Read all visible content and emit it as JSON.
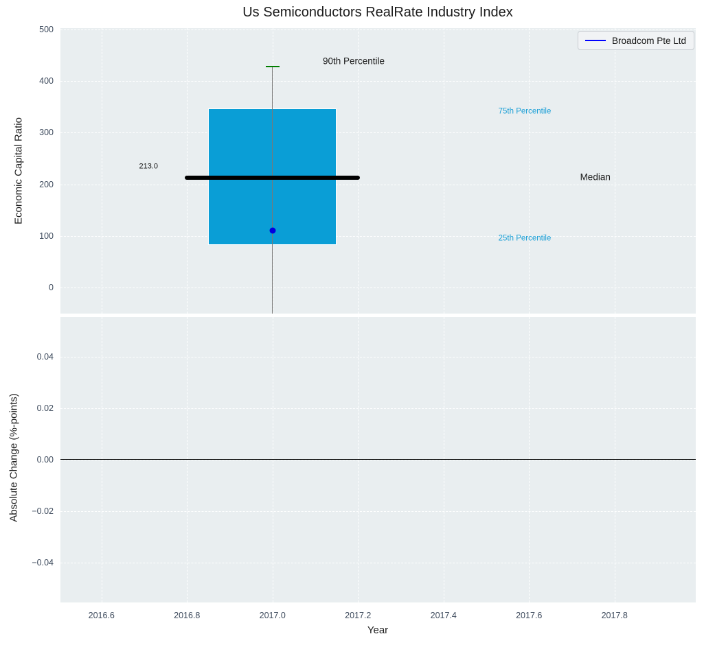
{
  "title": "Us Semiconductors RealRate Industry Index",
  "legend": {
    "label": "Broadcom Pte Ltd",
    "line_color": "#0000ff"
  },
  "colors": {
    "plot_bg": "#e9eef0",
    "grid": "rgba(255,255,255,0.95)",
    "box_fill": "#0a9ed6",
    "box_edge": "#ffffff",
    "median_line": "#000000",
    "whisker": "#787878",
    "p90_cap": "#007d00",
    "company_dot": "#0000e0",
    "tick_text": "#3d4a5c",
    "percentile_label_blue": "#1b9fd6",
    "annotation_black": "#1a1a1a"
  },
  "chart_data": [
    {
      "type": "box",
      "title": "Us Semiconductors RealRate Industry Index",
      "xlabel": "Year",
      "ylabel": "Economic Capital Ratio",
      "xlim": [
        2016.504,
        2017.99
      ],
      "ylim": [
        -50,
        502.4
      ],
      "grid": true,
      "legend_position": "upper right",
      "xticks": {
        "values": [
          2016.6,
          2016.8,
          2017.0,
          2017.2,
          2017.4,
          2017.6,
          2017.8
        ],
        "labels": [
          "2016.6",
          "2016.8",
          "2017.0",
          "2017.2",
          "2017.4",
          "2017.6",
          "2017.8"
        ],
        "show_labels": false
      },
      "yticks": {
        "values": [
          0,
          100,
          200,
          300,
          400,
          500
        ],
        "labels": [
          "0",
          "100",
          "200",
          "300",
          "400",
          "500"
        ]
      },
      "box": {
        "x": 2017.0,
        "p90": 428,
        "p75": 347,
        "median": 213.0,
        "median_label": "213.0",
        "p25": 83,
        "whisker_low_clipped": -50,
        "company_name": "Broadcom Pte Ltd",
        "company_value": 111,
        "box_halfwidth": 0.15,
        "median_halfwidth": 0.205,
        "cap_halfwidth": 0.016
      },
      "annotations": [
        {
          "text": "90th Percentile",
          "x": 2017.19,
          "y": 439,
          "color": "#1a1a1a",
          "size": 13.5
        },
        {
          "text": "75th Percentile",
          "x": 2017.59,
          "y": 340,
          "color": "#1b9fd6",
          "size": 11.5
        },
        {
          "text": "Median",
          "x": 2017.755,
          "y": 214,
          "color": "#1a1a1a",
          "size": 13.5
        },
        {
          "text": "25th Percentile",
          "x": 2017.59,
          "y": 95,
          "color": "#1b9fd6",
          "size": 11.5
        },
        {
          "text": "213.0",
          "x": 2016.71,
          "y": 234,
          "color": "#1a1a1a",
          "size": 11
        }
      ]
    },
    {
      "type": "line",
      "xlabel": "Year",
      "ylabel": "Absolute Change (%-points)",
      "xlim": [
        2016.504,
        2017.99
      ],
      "ylim": [
        -0.0555,
        0.0555
      ],
      "grid": true,
      "xticks": {
        "values": [
          2016.6,
          2016.8,
          2017.0,
          2017.2,
          2017.4,
          2017.6,
          2017.8
        ],
        "labels": [
          "2016.6",
          "2016.8",
          "2017.0",
          "2017.2",
          "2017.4",
          "2017.6",
          "2017.8"
        ],
        "show_labels": true
      },
      "yticks": {
        "values": [
          0.04,
          0.02,
          0.0,
          -0.02,
          -0.04
        ],
        "labels": [
          "0.04",
          "0.02",
          "0.00",
          "−0.02",
          "−0.04"
        ]
      },
      "zero_line": 0.0,
      "series": []
    }
  ]
}
